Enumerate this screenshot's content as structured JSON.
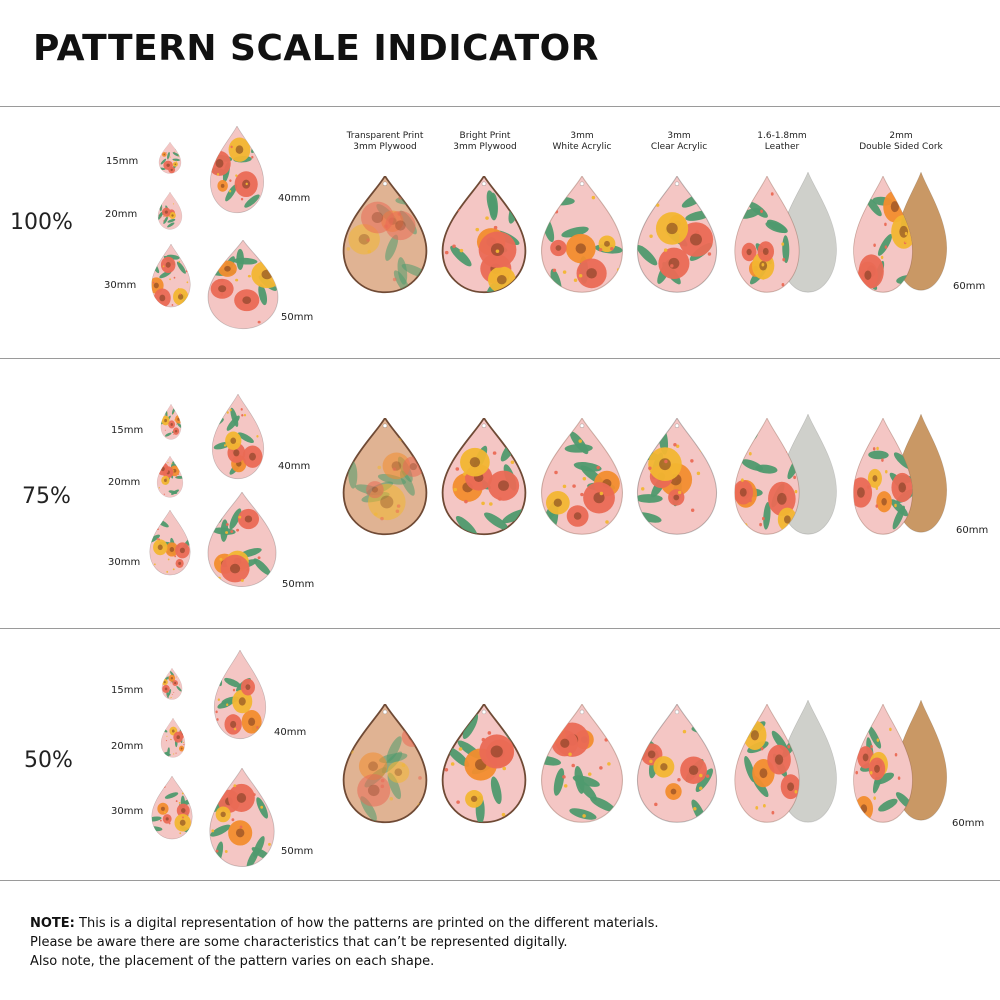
{
  "title": "PATTERN SCALE INDICATOR",
  "materials": [
    {
      "line1": "Transparent Print",
      "line2": "3mm Plywood"
    },
    {
      "line1": "Bright Print",
      "line2": "3mm Plywood"
    },
    {
      "line1": "3mm",
      "line2": "White Acrylic"
    },
    {
      "line1": "3mm",
      "line2": "Clear Acrylic"
    },
    {
      "line1": "1.6-1.8mm",
      "line2": "Leather"
    },
    {
      "line1": "2mm",
      "line2": "Double Sided Cork"
    }
  ],
  "sections": [
    {
      "scale": "100%",
      "sizes": [
        "15mm",
        "20mm",
        "30mm",
        "40mm",
        "50mm"
      ],
      "large_size": "60mm"
    },
    {
      "scale": "75%",
      "sizes": [
        "15mm",
        "20mm",
        "30mm",
        "40mm",
        "50mm"
      ],
      "large_size": "60mm"
    },
    {
      "scale": "50%",
      "sizes": [
        "15mm",
        "20mm",
        "30mm",
        "40mm",
        "50mm"
      ],
      "large_size": "60mm"
    }
  ],
  "note": {
    "label": "NOTE:",
    "line1": "This is a digital representation of how the patterns are printed on the different materials.",
    "line2": "Please be aware there are some characteristics that can’t be represented digitally.",
    "line3": "Also note, the placement of the pattern varies on each shape."
  },
  "colors": {
    "pink_base": "#f4c6c4",
    "wood_base": "#e0b393",
    "coral": "#ea6a55",
    "orange": "#f28d2e",
    "leaf_green": "#4f9a6e",
    "yellow": "#f2b632",
    "leather_grey": "#cfd0cb",
    "cork": "#c99865"
  }
}
